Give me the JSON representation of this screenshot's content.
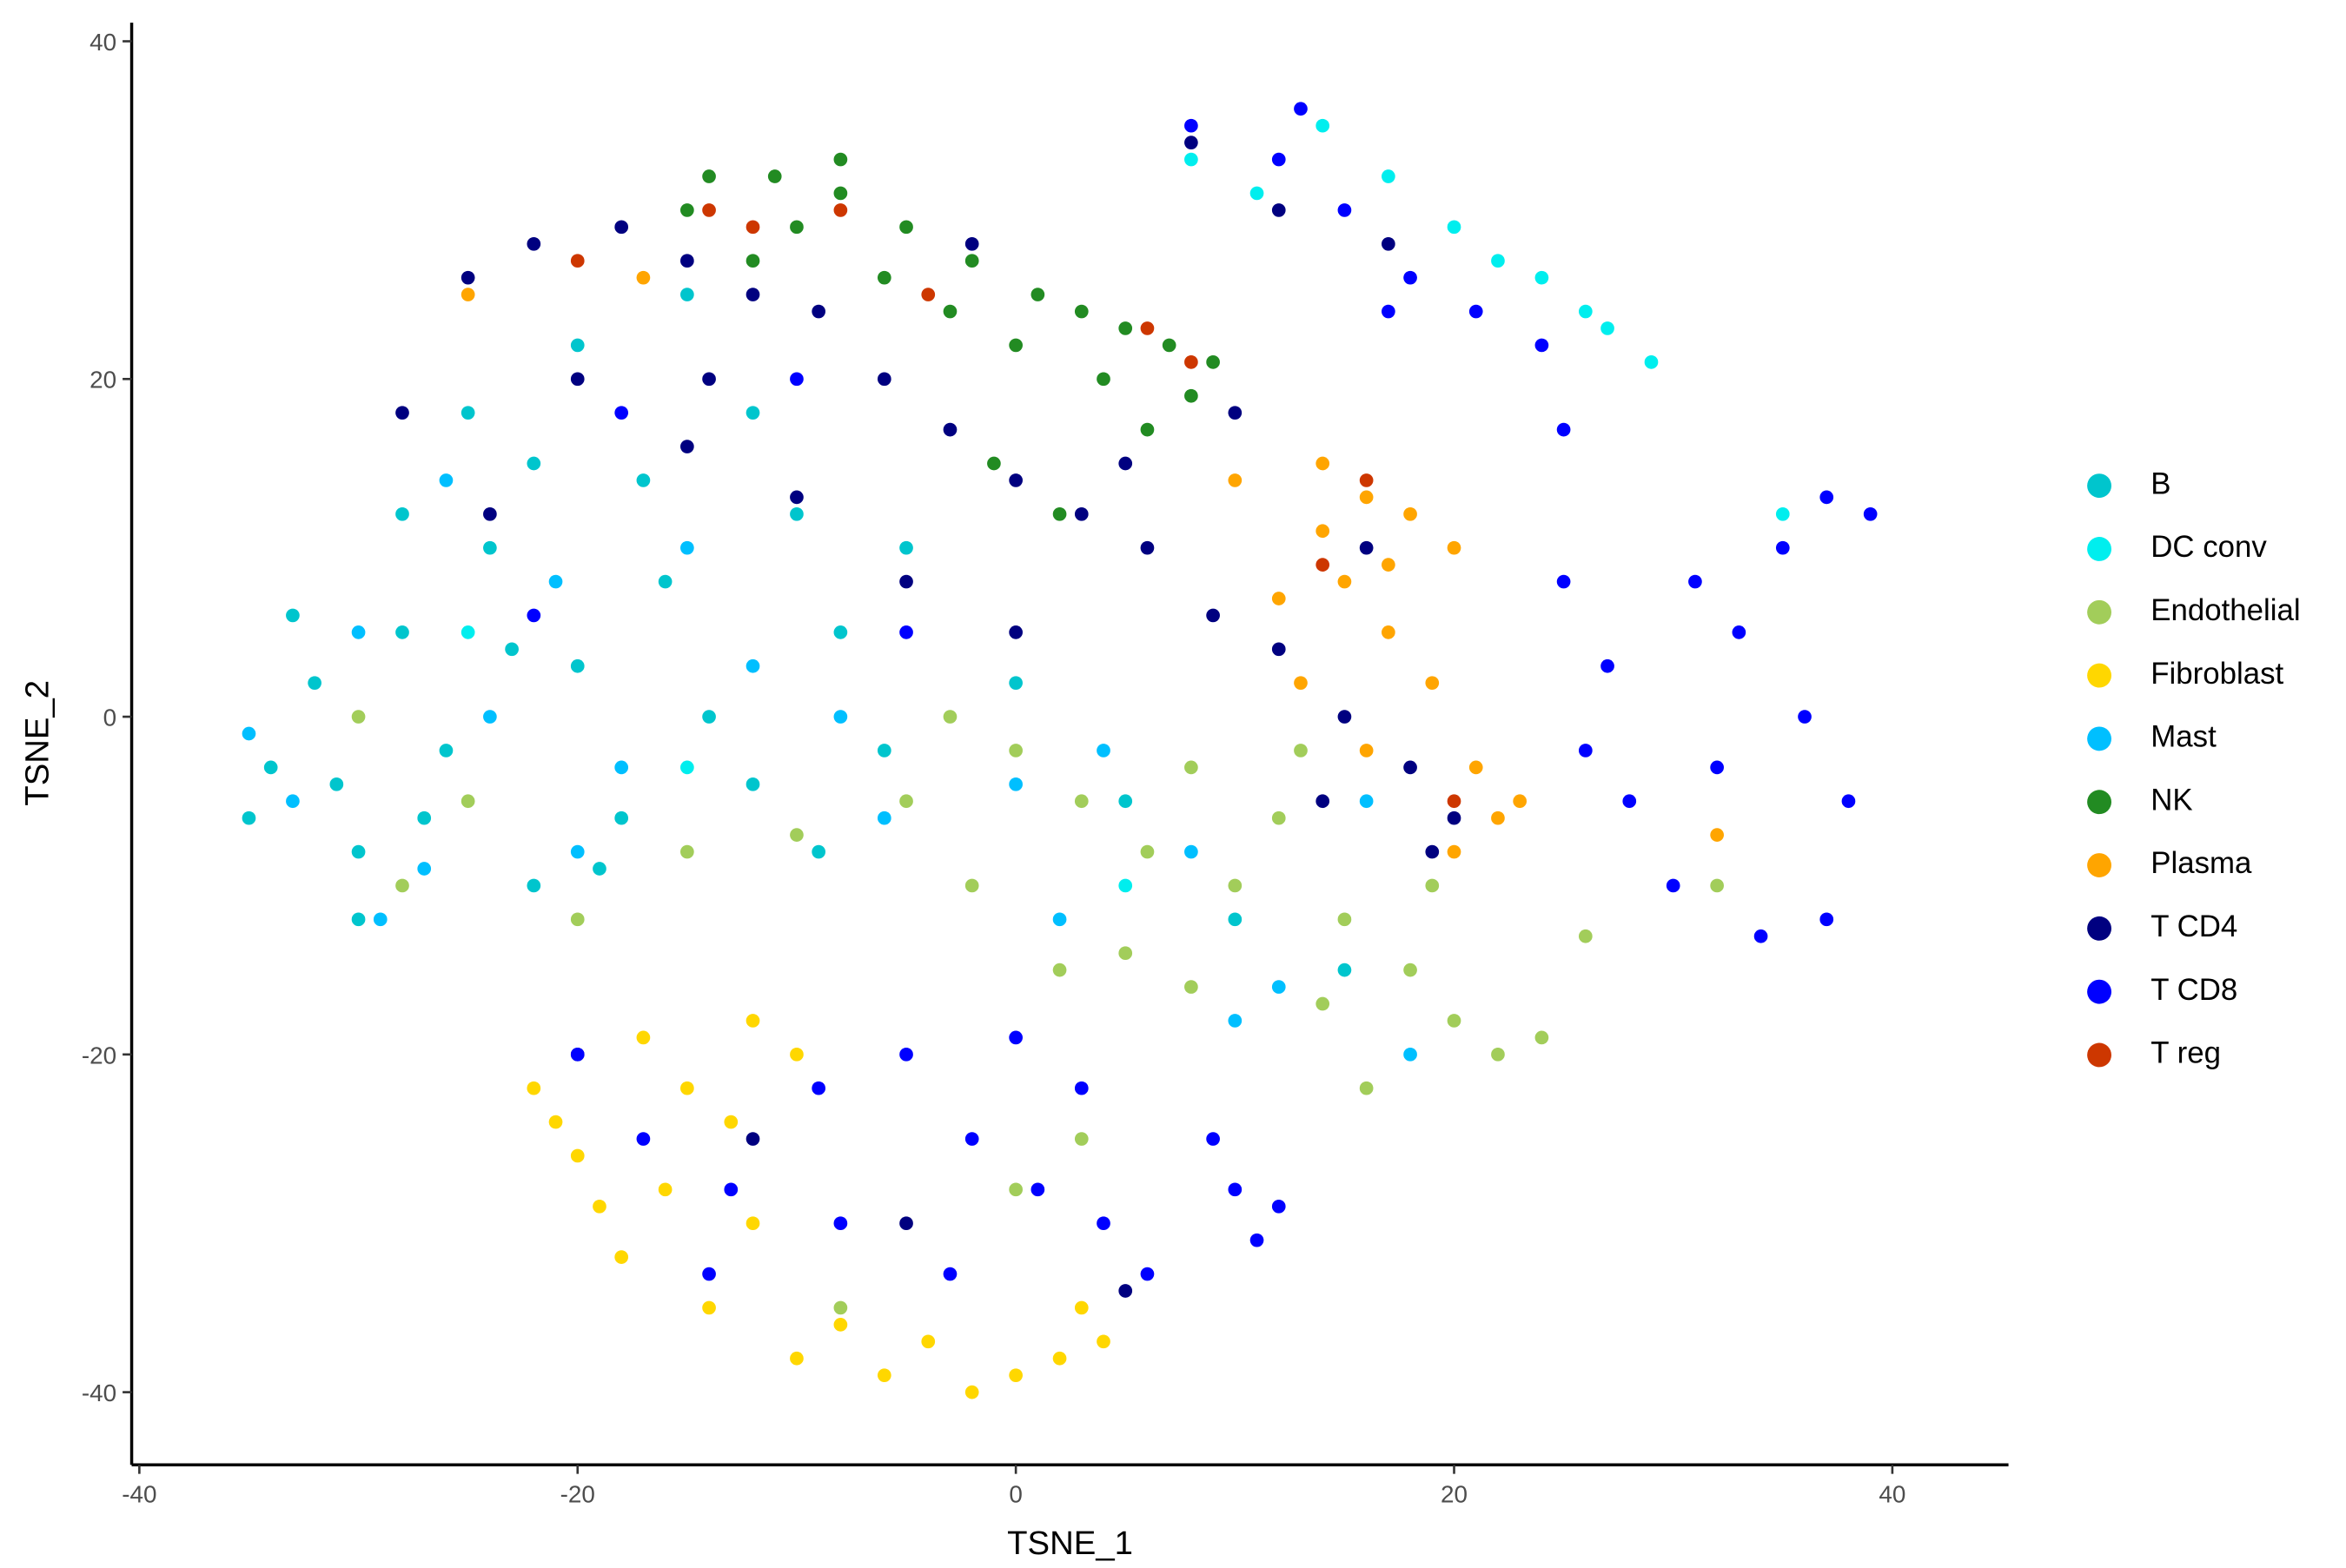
{
  "chart_data": {
    "type": "scatter",
    "x_label": "TSNE_1",
    "y_label": "TSNE_2",
    "xlim": [
      -40.35,
      45.3
    ],
    "ylim": [
      -44.3,
      41.1
    ],
    "xticks": [
      -40,
      -20,
      0,
      20,
      40
    ],
    "yticks": [
      -40,
      -20,
      0,
      20,
      40
    ],
    "grid": false,
    "legend": "right",
    "series": [
      {
        "name": "B",
        "color": "#00C5CD",
        "x": [
          -34,
          -32,
          -30,
          -28,
          -26,
          -24,
          -22,
          -20,
          -18,
          -16,
          -14,
          -12,
          -10,
          -8,
          -6,
          -25,
          -20,
          -15,
          -30,
          -22,
          -35,
          -33,
          -27,
          -19,
          -5,
          0,
          5,
          10,
          15,
          -12,
          -28,
          -31,
          -23,
          -17,
          -9
        ],
        "y": [
          -3,
          2,
          -8,
          5,
          -2,
          10,
          15,
          3,
          -6,
          8,
          0,
          -4,
          12,
          5,
          -2,
          18,
          22,
          25,
          -12,
          -10,
          -6,
          6,
          -6,
          -9,
          10,
          2,
          -5,
          -12,
          -15,
          18,
          12,
          -4,
          4,
          14,
          -8
        ]
      },
      {
        "name": "DC conv",
        "color": "#00EEEE",
        "x": [
          8,
          14,
          20,
          24,
          27,
          29,
          26,
          22,
          11,
          17,
          -25,
          -15,
          5,
          35
        ],
        "y": [
          33,
          35,
          29,
          26,
          23,
          21,
          24,
          27,
          31,
          32,
          5,
          -3,
          -10,
          12
        ]
      },
      {
        "name": "Endothelial",
        "color": "#A2CD5A",
        "x": [
          0,
          3,
          6,
          8,
          10,
          12,
          15,
          18,
          20,
          22,
          24,
          16,
          14,
          5,
          -2,
          -5,
          -10,
          -15,
          -25,
          -30,
          -20,
          19,
          8,
          2,
          13,
          -28,
          0,
          3,
          -8,
          32,
          26,
          -3
        ],
        "y": [
          -2,
          -5,
          -8,
          -3,
          -10,
          -6,
          -12,
          -15,
          -18,
          -20,
          -19,
          -22,
          -17,
          -14,
          -10,
          -5,
          -7,
          -8,
          -5,
          0,
          -12,
          -10,
          -16,
          -15,
          -2,
          -10,
          -28,
          -25,
          -35,
          -10,
          -13,
          0
        ]
      },
      {
        "name": "Fibroblast",
        "color": "#FFD700",
        "x": [
          -22,
          -20,
          -19,
          -16,
          -15,
          -12,
          -10,
          -14,
          -10,
          -6,
          -2,
          2,
          4,
          -18,
          -8,
          -12,
          -4,
          0,
          -17,
          3,
          -21,
          -13
        ],
        "y": [
          -22,
          -26,
          -29,
          -28,
          -22,
          -18,
          -20,
          -35,
          -38,
          -39,
          -40,
          -38,
          -37,
          -32,
          -36,
          -30,
          -37,
          -39,
          -19,
          -35,
          -24,
          -24
        ]
      },
      {
        "name": "Mast",
        "color": "#00BFFF",
        "x": [
          -33,
          -30,
          -27,
          -24,
          -21,
          -18,
          -12,
          -6,
          0,
          4,
          8,
          12,
          16,
          -26,
          -35,
          -29,
          -15,
          -8,
          2,
          10,
          18,
          -20
        ],
        "y": [
          -5,
          5,
          -9,
          0,
          8,
          -3,
          3,
          -6,
          -4,
          -2,
          -8,
          -16,
          -5,
          14,
          -1,
          -12,
          10,
          0,
          -12,
          -18,
          -20,
          -8
        ]
      },
      {
        "name": "NK",
        "color": "#228B22",
        "x": [
          -14,
          -11,
          -8,
          -5,
          -2,
          1,
          3,
          5,
          7,
          9,
          -10,
          -6,
          -3,
          0,
          4,
          8,
          -12,
          2,
          -1,
          6,
          -8,
          -15
        ],
        "y": [
          32,
          32,
          31,
          29,
          27,
          25,
          24,
          23,
          22,
          21,
          29,
          26,
          24,
          22,
          20,
          19,
          27,
          12,
          15,
          17,
          33,
          30
        ]
      },
      {
        "name": "Plasma",
        "color": "#FFA500",
        "x": [
          14,
          16,
          18,
          20,
          15,
          17,
          19,
          21,
          22,
          13,
          12,
          16,
          20,
          17,
          14,
          23,
          10,
          -17,
          32,
          -25
        ],
        "y": [
          15,
          13,
          12,
          10,
          8,
          5,
          2,
          -3,
          -6,
          2,
          7,
          -2,
          -8,
          9,
          11,
          -5,
          14,
          26,
          -7,
          25
        ]
      },
      {
        "name": "T CD4",
        "color": "#000080",
        "x": [
          -25,
          -22,
          -18,
          -15,
          -12,
          -9,
          -6,
          -3,
          0,
          3,
          6,
          9,
          12,
          15,
          18,
          20,
          -20,
          -15,
          -10,
          -5,
          0,
          5,
          10,
          -28,
          -24,
          16,
          19,
          14,
          -20,
          -12,
          -5,
          5,
          8,
          12,
          17,
          -14,
          -2
        ],
        "y": [
          26,
          28,
          29,
          27,
          25,
          24,
          20,
          17,
          14,
          12,
          10,
          6,
          4,
          0,
          -3,
          -6,
          20,
          16,
          13,
          8,
          5,
          15,
          18,
          18,
          12,
          10,
          -8,
          -5,
          -20,
          -25,
          -30,
          -34,
          34,
          30,
          28,
          20,
          28
        ]
      },
      {
        "name": "T CD8",
        "color": "#0000FF",
        "x": [
          8,
          12,
          15,
          18,
          21,
          24,
          13,
          17,
          25,
          25,
          27,
          28,
          30,
          32,
          33,
          35,
          37,
          39,
          36,
          38,
          37,
          34,
          31,
          26,
          -20,
          -17,
          -13,
          -9,
          -5,
          -2,
          1,
          4,
          6,
          -3,
          -8,
          0,
          3,
          -14,
          10,
          11,
          12,
          9,
          -22,
          -10,
          -5,
          -18
        ],
        "y": [
          35,
          33,
          30,
          26,
          24,
          22,
          36,
          24,
          17,
          8,
          3,
          -5,
          -10,
          -3,
          5,
          10,
          13,
          12,
          0,
          -5,
          -12,
          -13,
          8,
          -2,
          -20,
          -25,
          -28,
          -22,
          -20,
          -25,
          -28,
          -30,
          -33,
          -33,
          -30,
          -19,
          -22,
          -33,
          -28,
          -31,
          -29,
          -25,
          6,
          20,
          5,
          18
        ]
      },
      {
        "name": "T reg",
        "color": "#CD3700",
        "x": [
          -14,
          -12,
          -8,
          8,
          14,
          16,
          -20,
          -4,
          20,
          6
        ],
        "y": [
          30,
          29,
          30,
          21,
          9,
          14,
          27,
          25,
          -5,
          23
        ]
      }
    ]
  }
}
